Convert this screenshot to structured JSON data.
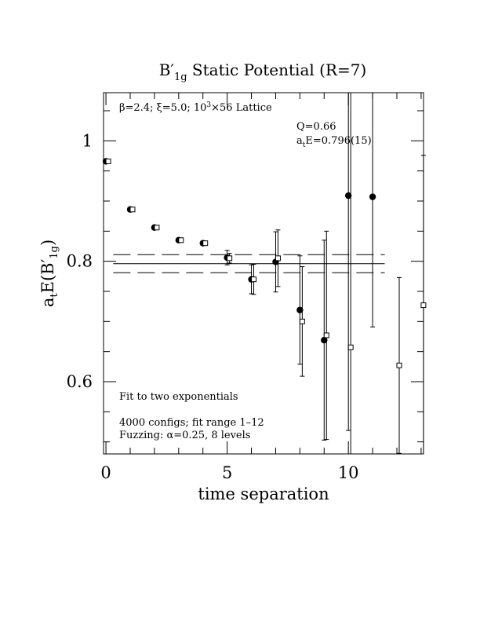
{
  "chart_data": {
    "type": "scatter",
    "title": {
      "prefix": "B",
      "prime": "′",
      "subscript": "1g",
      "suffix": " Static Potential (R=7)"
    },
    "xlabel": "time separation",
    "ylabel": {
      "prefix": "a",
      "sub_t": "t",
      "mid": "E(B",
      "prime": "′",
      "sub_1g": "1g",
      "suffix": ")"
    },
    "xlim": [
      -0.1,
      13.1
    ],
    "ylim": [
      0.48,
      1.08
    ],
    "x_ticks": [
      0,
      5,
      10
    ],
    "y_ticks": [
      0.6,
      0.8,
      1.0
    ],
    "y_tick_labels": [
      "0.6",
      "0.8",
      "1"
    ],
    "x_minor_step": 1,
    "y_minor_step": 0.05,
    "annotations": {
      "lattice": {
        "beta": "β=2.4; ",
        "xi": "ξ=5.0; ",
        "size": "10",
        "sup": "3",
        "rest": "×56 Lattice"
      },
      "q": "Q=0.66",
      "energy": {
        "prefix": "a",
        "sub": "t",
        "rest": "E=0.796(15)"
      },
      "fit": "Fit to two exponentials",
      "configs": "4000 configs; fit range 1–12",
      "fuzzing": "Fuzzing: α=0.25, 8 levels"
    },
    "fit": {
      "value": 0.796,
      "error": 0.015,
      "t_start": 0.3,
      "t_end": 11.5
    },
    "series": [
      {
        "marker": "filled-circle",
        "points": [
          {
            "x": 0,
            "y": 0.966,
            "err": 0.0
          },
          {
            "x": 1,
            "y": 0.886,
            "err": 0.0
          },
          {
            "x": 2,
            "y": 0.856,
            "err": 0.0
          },
          {
            "x": 3,
            "y": 0.835,
            "err": 0.0
          },
          {
            "x": 4,
            "y": 0.83,
            "err": 0.003
          },
          {
            "x": 5,
            "y": 0.806,
            "err": 0.012
          },
          {
            "x": 6,
            "y": 0.77,
            "err": 0.024
          },
          {
            "x": 7,
            "y": 0.799,
            "err": 0.05
          },
          {
            "x": 8,
            "y": 0.719,
            "err": 0.09
          },
          {
            "x": 9,
            "y": 0.669,
            "err": 0.166
          },
          {
            "x": 10,
            "y": 0.909,
            "err": 0.39
          },
          {
            "x": 11,
            "y": 0.907,
            "err": 0.216
          }
        ]
      },
      {
        "marker": "open-square",
        "points": [
          {
            "x": 0,
            "y": 0.966,
            "err": 0.0
          },
          {
            "x": 1,
            "y": 0.886,
            "err": 0.0
          },
          {
            "x": 2,
            "y": 0.856,
            "err": 0.0
          },
          {
            "x": 3,
            "y": 0.835,
            "err": 0.0
          },
          {
            "x": 4,
            "y": 0.83,
            "err": 0.0
          },
          {
            "x": 5,
            "y": 0.805,
            "err": 0.008
          },
          {
            "x": 6,
            "y": 0.77,
            "err": 0.025
          },
          {
            "x": 7,
            "y": 0.805,
            "err": 0.047
          },
          {
            "x": 8,
            "y": 0.7,
            "err": 0.091
          },
          {
            "x": 9,
            "y": 0.677,
            "err": 0.173
          },
          {
            "x": 10,
            "y": 0.657,
            "err": 0.48
          },
          {
            "x": 12,
            "y": 0.627,
            "err": 0.146
          },
          {
            "x": 13,
            "y": 0.727,
            "err": 0.249
          }
        ]
      }
    ]
  }
}
